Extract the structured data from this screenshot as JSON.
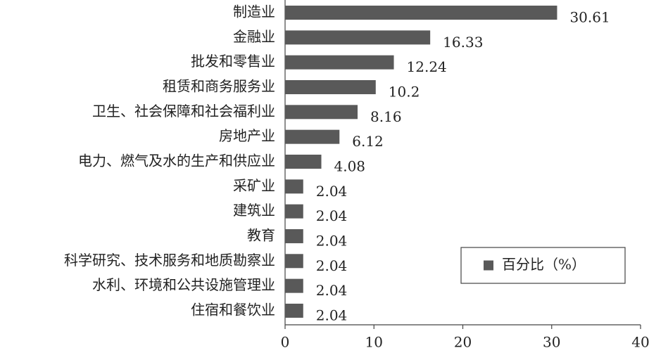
{
  "chart_data": {
    "type": "bar",
    "orientation": "horizontal",
    "categories": [
      "制造业",
      "金融业",
      "批发和零售业",
      "租赁和商务服务业",
      "卫生、社会保障和社会福利业",
      "房地产业",
      "电力、燃气及水的生产和供应业",
      "采矿业",
      "建筑业",
      "教育",
      "科学研究、技术服务和地质勘察业",
      "水利、环境和公共设施管理业",
      "住宿和餐饮业"
    ],
    "series": [
      {
        "name": "百分比（%）",
        "color": "#595959",
        "values": [
          30.61,
          16.33,
          12.24,
          10.2,
          8.16,
          6.12,
          4.08,
          2.04,
          2.04,
          2.04,
          2.04,
          2.04,
          2.04
        ]
      }
    ],
    "xlim": [
      0,
      40
    ],
    "xticks": [
      0,
      10,
      20,
      30,
      40
    ],
    "legend": "lower right"
  }
}
